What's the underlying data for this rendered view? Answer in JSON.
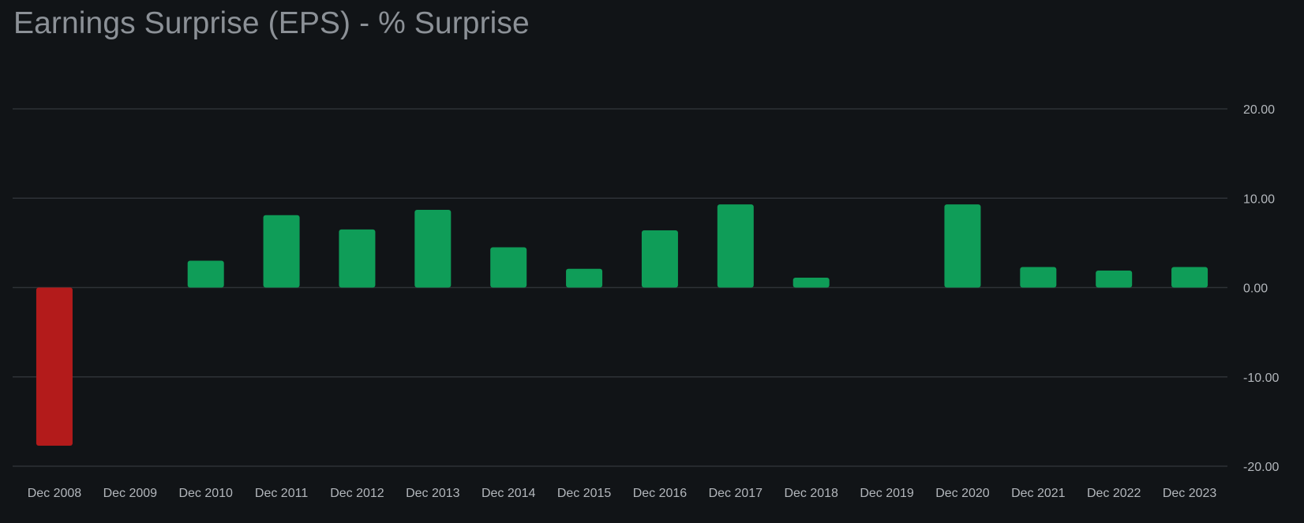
{
  "chart_data": {
    "type": "bar",
    "title": "Earnings Surprise (EPS) - % Surprise",
    "xlabel": "",
    "ylabel": "",
    "categories": [
      "Dec 2008",
      "Dec 2009",
      "Dec 2010",
      "Dec 2011",
      "Dec 2012",
      "Dec 2013",
      "Dec 2014",
      "Dec 2015",
      "Dec 2016",
      "Dec 2017",
      "Dec 2018",
      "Dec 2019",
      "Dec 2020",
      "Dec 2021",
      "Dec 2022",
      "Dec 2023"
    ],
    "values": [
      -17.7,
      0,
      3.0,
      8.1,
      6.5,
      8.7,
      4.5,
      2.1,
      6.4,
      9.3,
      1.1,
      0,
      9.3,
      2.3,
      1.9,
      2.3
    ],
    "ylim": [
      -20,
      20
    ],
    "yticks": [
      20,
      10,
      0,
      -10,
      -20
    ],
    "ytick_labels": [
      "20.00",
      "10.00",
      "0.00",
      "-10.00",
      "-20.00"
    ],
    "grid": true,
    "legend": "none",
    "axis_position": "right",
    "colors": {
      "positive": "#0f9d58",
      "negative": "#b31b1b",
      "grid": "#2e3237",
      "background": "#111417"
    }
  }
}
